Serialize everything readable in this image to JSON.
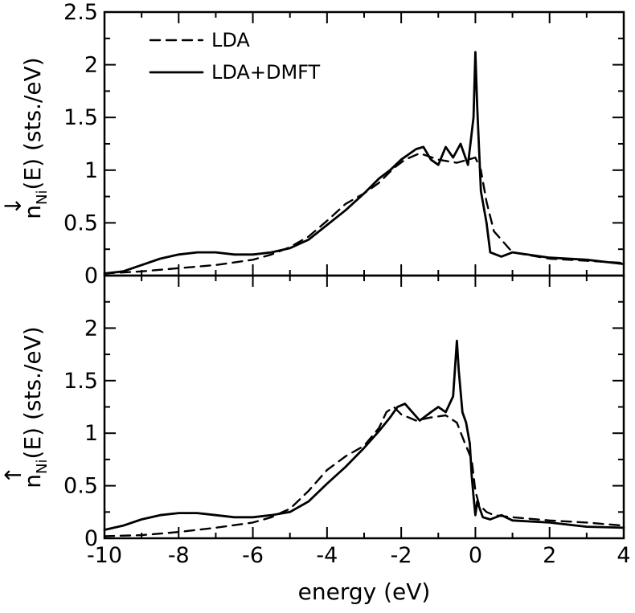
{
  "chart_data": [
    {
      "type": "line",
      "panel": "top",
      "ylabel": {
        "main": "n",
        "arrow": "↓",
        "sub": "Ni",
        "rest": "(E) (sts./eV)"
      },
      "xlim": [
        -10,
        4
      ],
      "ylim": [
        0,
        2.5
      ],
      "yticks": [
        "0",
        "0.5",
        "1",
        "1.5",
        "2",
        "2.5"
      ],
      "yticks_values": [
        0,
        0.5,
        1,
        1.5,
        2,
        2.5
      ],
      "legend": {
        "position": "top-left",
        "entries": [
          {
            "label": "LDA",
            "style": "dashed"
          },
          {
            "label": "LDA+DMFT",
            "style": "solid"
          }
        ]
      },
      "series": [
        {
          "name": "LDA",
          "style": "dashed",
          "x": [
            -10,
            -9,
            -8,
            -7,
            -6,
            -5.5,
            -5,
            -4.5,
            -4,
            -3.5,
            -3,
            -2.6,
            -2.2,
            -1.9,
            -1.5,
            -1,
            -0.5,
            0,
            0.15,
            0.3,
            0.5,
            1,
            2,
            3,
            4
          ],
          "y": [
            0.02,
            0.04,
            0.07,
            0.1,
            0.15,
            0.2,
            0.27,
            0.37,
            0.52,
            0.68,
            0.78,
            0.88,
            1.02,
            1.1,
            1.16,
            1.1,
            1.07,
            1.12,
            1.0,
            0.7,
            0.42,
            0.22,
            0.16,
            0.14,
            0.12
          ]
        },
        {
          "name": "LDA+DMFT",
          "style": "solid",
          "x": [
            -10,
            -9.5,
            -9,
            -8.5,
            -8,
            -7.5,
            -7,
            -6.5,
            -6,
            -5.5,
            -5,
            -4.5,
            -4,
            -3.5,
            -3,
            -2.6,
            -2.3,
            -2,
            -1.8,
            -1.6,
            -1.4,
            -1.2,
            -1,
            -0.8,
            -0.6,
            -0.4,
            -0.2,
            -0.05,
            0,
            0.05,
            0.15,
            0.3,
            0.4,
            0.7,
            1,
            2,
            3,
            4
          ],
          "y": [
            0.02,
            0.04,
            0.1,
            0.16,
            0.2,
            0.22,
            0.22,
            0.2,
            0.2,
            0.22,
            0.26,
            0.34,
            0.48,
            0.62,
            0.78,
            0.92,
            1.0,
            1.1,
            1.15,
            1.2,
            1.22,
            1.1,
            1.05,
            1.22,
            1.12,
            1.25,
            1.05,
            1.5,
            2.12,
            1.6,
            0.8,
            0.5,
            0.22,
            0.18,
            0.22,
            0.17,
            0.15,
            0.11
          ]
        }
      ]
    },
    {
      "type": "line",
      "panel": "bottom",
      "ylabel": {
        "main": "n",
        "arrow": "↑",
        "sub": "Ni",
        "rest": "(E) (sts./eV)"
      },
      "xlabel": "energy (eV)",
      "xlim": [
        -10,
        4
      ],
      "ylim": [
        0,
        2.5
      ],
      "xticks": [
        "-10",
        "-8",
        "-6",
        "-4",
        "-2",
        "0",
        "2",
        "4"
      ],
      "xticks_values": [
        -10,
        -8,
        -6,
        -4,
        -2,
        0,
        2,
        4
      ],
      "yticks": [
        "0",
        "0.5",
        "1",
        "1.5",
        "2"
      ],
      "yticks_values": [
        0,
        0.5,
        1,
        1.5,
        2
      ],
      "series": [
        {
          "name": "LDA",
          "style": "dashed",
          "x": [
            -10,
            -9,
            -8,
            -7,
            -6,
            -5.5,
            -5.2,
            -5,
            -4.5,
            -4,
            -3.5,
            -3,
            -2.6,
            -2.4,
            -2.2,
            -2,
            -1.6,
            -1.2,
            -0.8,
            -0.5,
            -0.3,
            -0.1,
            0,
            0.1,
            0.3,
            0.5,
            1,
            2,
            3,
            4
          ],
          "y": [
            0.02,
            0.03,
            0.06,
            0.1,
            0.15,
            0.2,
            0.25,
            0.28,
            0.45,
            0.65,
            0.78,
            0.88,
            1.05,
            1.2,
            1.25,
            1.18,
            1.12,
            1.15,
            1.17,
            1.1,
            0.92,
            0.75,
            0.45,
            0.32,
            0.25,
            0.22,
            0.2,
            0.17,
            0.15,
            0.12
          ]
        },
        {
          "name": "LDA+DMFT",
          "style": "solid",
          "x": [
            -10,
            -9.5,
            -9,
            -8.5,
            -8,
            -7.5,
            -7,
            -6.5,
            -6,
            -5.5,
            -5,
            -4.5,
            -4,
            -3.5,
            -3,
            -2.6,
            -2.3,
            -2.1,
            -1.9,
            -1.7,
            -1.5,
            -1.2,
            -1,
            -0.8,
            -0.6,
            -0.5,
            -0.45,
            -0.35,
            -0.25,
            -0.15,
            -0.1,
            -0.05,
            0,
            0.05,
            0.2,
            0.4,
            0.7,
            1,
            2,
            3,
            4
          ],
          "y": [
            0.08,
            0.12,
            0.18,
            0.22,
            0.24,
            0.24,
            0.22,
            0.2,
            0.2,
            0.22,
            0.25,
            0.35,
            0.52,
            0.68,
            0.86,
            1.02,
            1.15,
            1.25,
            1.28,
            1.2,
            1.12,
            1.2,
            1.25,
            1.2,
            1.35,
            1.88,
            1.6,
            1.2,
            1.1,
            0.9,
            0.6,
            0.4,
            0.22,
            0.35,
            0.2,
            0.18,
            0.22,
            0.17,
            0.15,
            0.11,
            0.1
          ]
        }
      ]
    }
  ]
}
